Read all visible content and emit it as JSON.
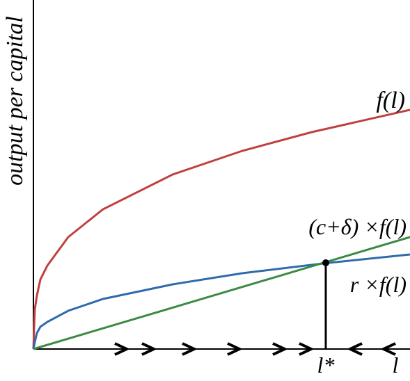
{
  "y_axis_label": "output per capital",
  "x_axis_label": "l",
  "curves": [
    {
      "label": "f(l)"
    },
    {
      "label": "(c+δ) ×f(l)"
    },
    {
      "label": "r ×f(l)"
    }
  ],
  "steady_state_label": "l*"
}
